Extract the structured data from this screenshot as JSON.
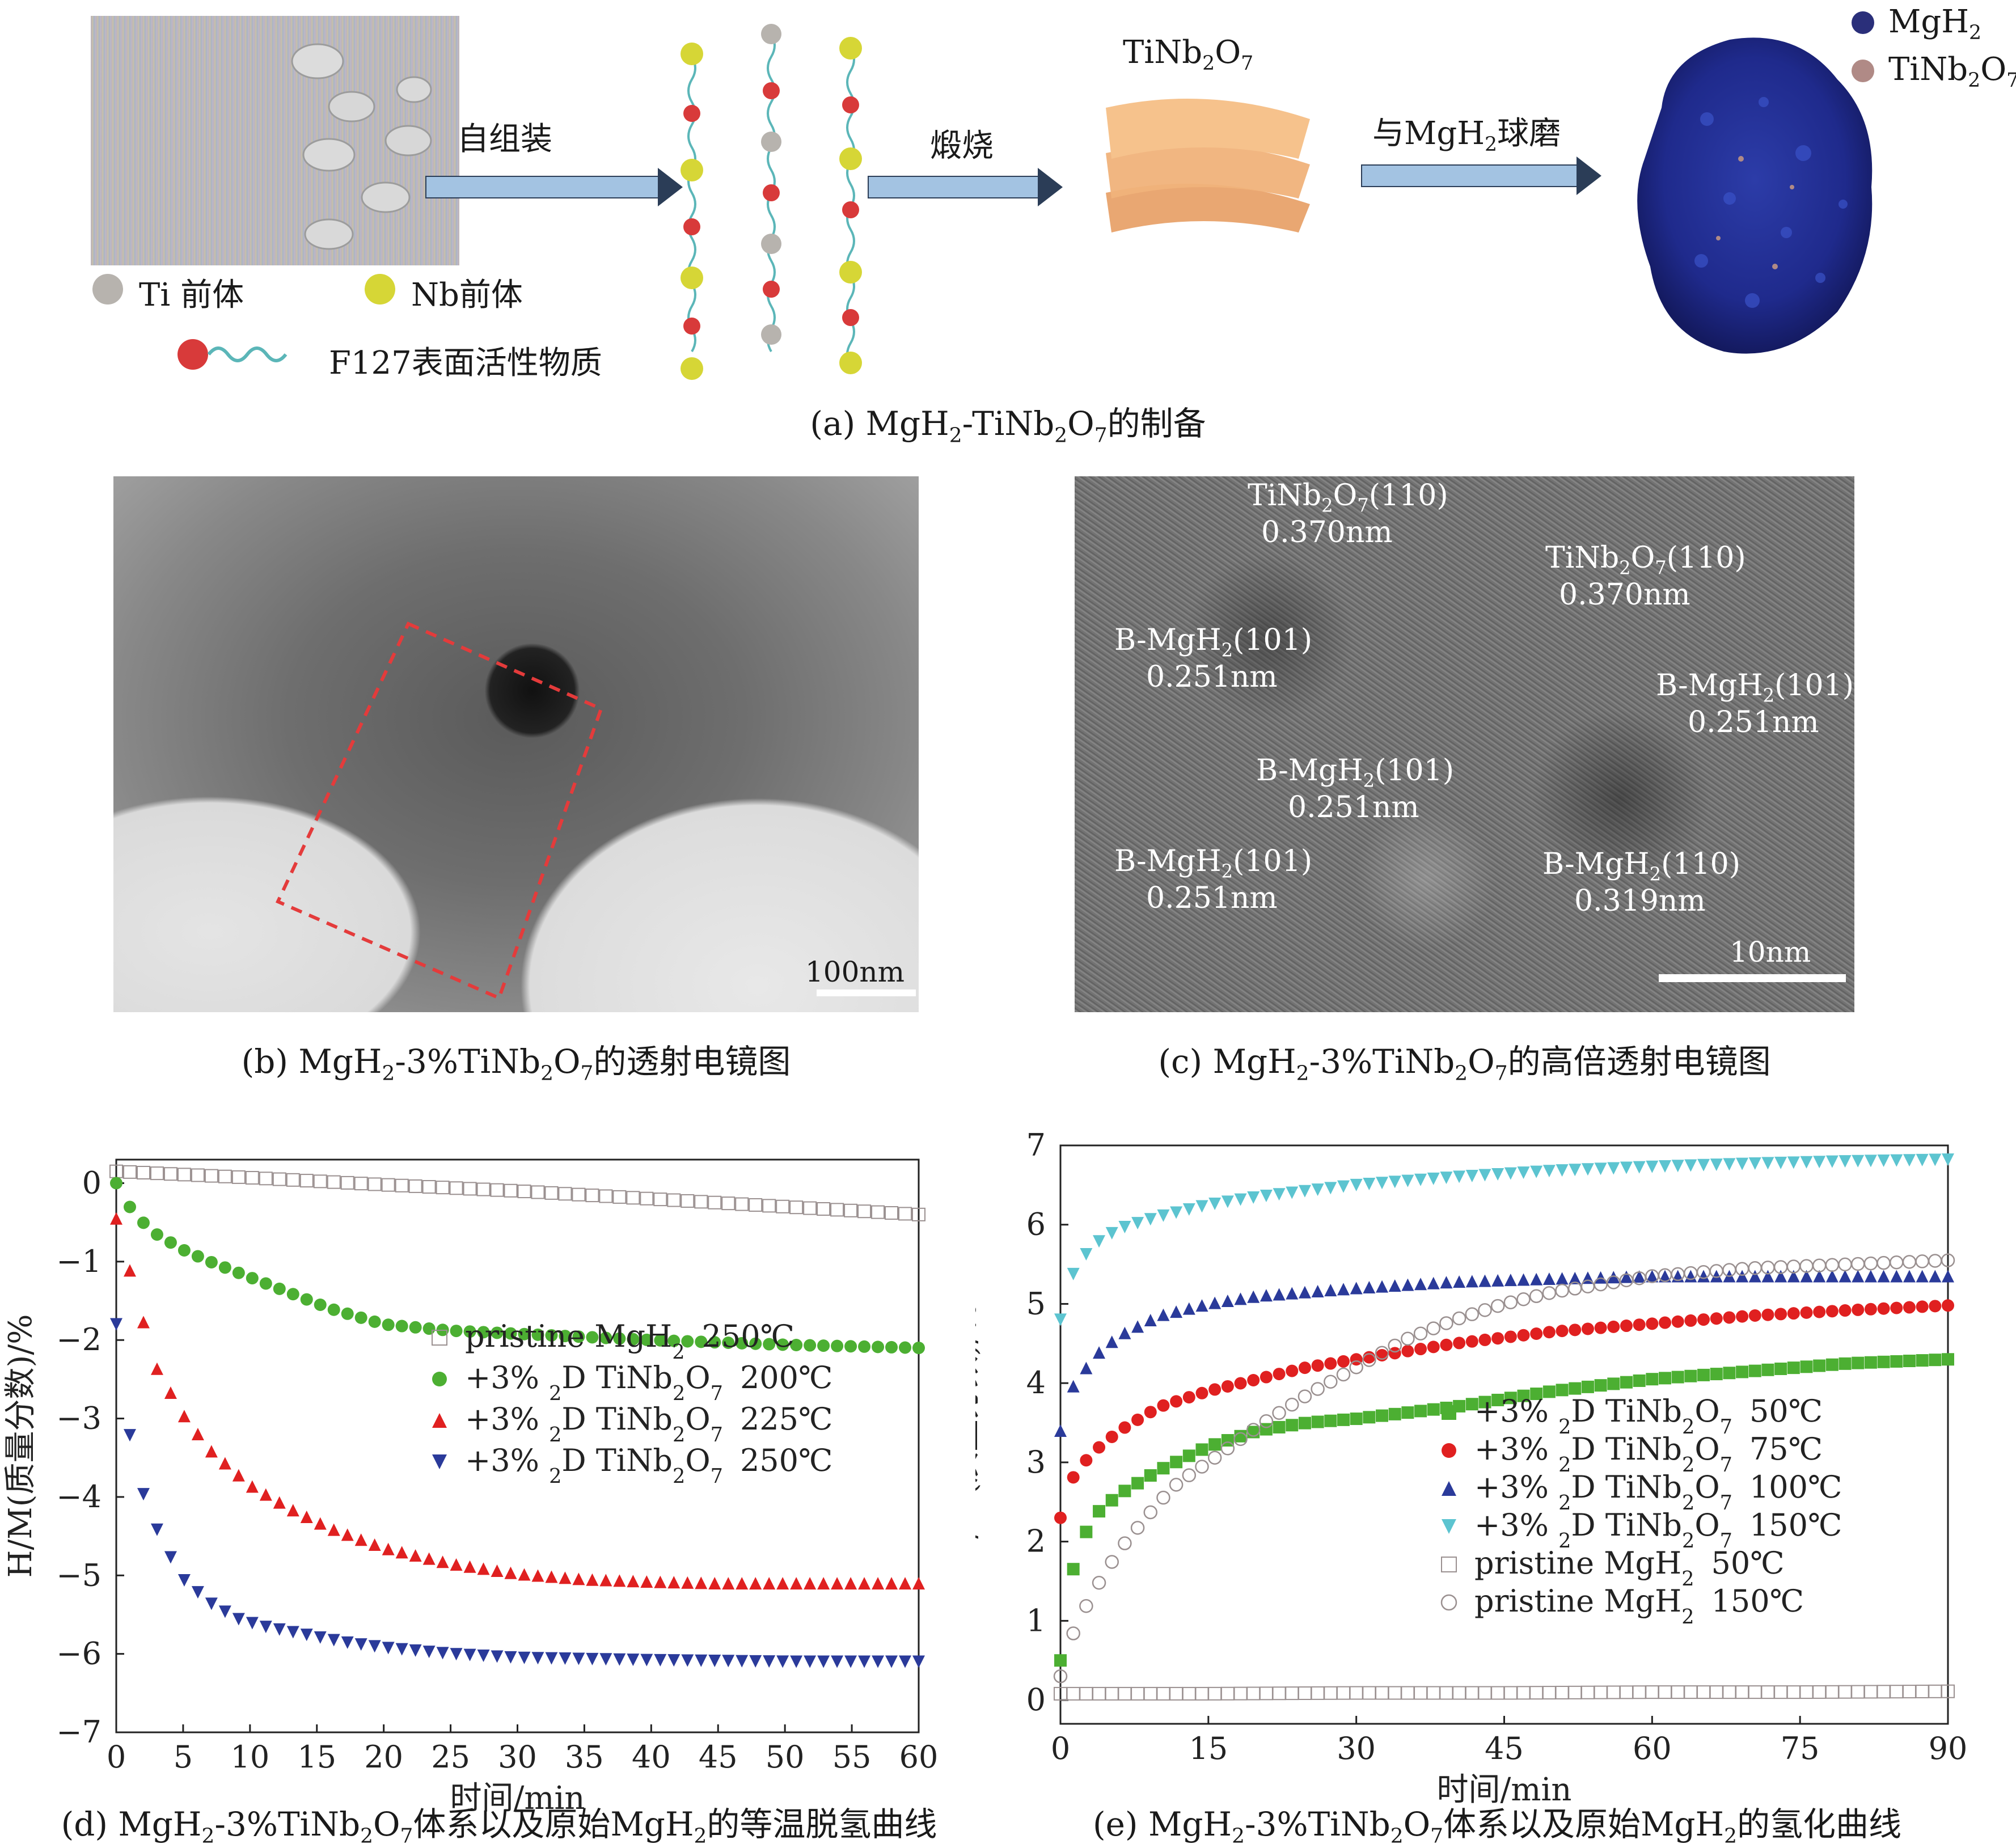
{
  "panel_a": {
    "steps": [
      "自组装",
      "煅烧",
      "与MgH2球磨"
    ],
    "product_label": "TiNb2O7",
    "legend": {
      "ti": "Ti 前体",
      "nb": "Nb前体",
      "f127": "F127表面活性物质"
    },
    "particle_legend": {
      "mgh2": "MgH2",
      "tinb": "TiNb2O7"
    },
    "caption": "(a) MgH2-TiNb2O7的制备",
    "colors": {
      "mgh2": "#2a2f7a",
      "tinb": "#b08a86",
      "nb": "#d6d636",
      "ti": "#b7b3ae",
      "f127": "#d83a3a",
      "arrow": "#9ec1e0"
    }
  },
  "panel_b": {
    "scale_bar": "100nm",
    "caption": "(b) MgH2-3%TiNb2O7的透射电镜图"
  },
  "panel_c": {
    "annotations": [
      {
        "phase": "TiNb2O7(110)",
        "spacing": "0.370nm"
      },
      {
        "phase": "TiNb2O7(110)",
        "spacing": "0.370nm"
      },
      {
        "phase": "B-MgH2(101)",
        "spacing": "0.251nm"
      },
      {
        "phase": "B-MgH2(101)",
        "spacing": "0.251nm"
      },
      {
        "phase": "B-MgH2(101)",
        "spacing": "0.251nm"
      },
      {
        "phase": "B-MgH2(101)",
        "spacing": "0.251nm"
      },
      {
        "phase": "B-MgH2(110)",
        "spacing": "0.319nm"
      }
    ],
    "scale_bar": "10nm",
    "caption": "(c) MgH2-3%TiNb2O7的高倍透射电镜图"
  },
  "chart_data": [
    {
      "id": "d",
      "type": "scatter",
      "title": "(d) MgH2-3%TiNb2O7体系以及原始MgH2的等温脱氢曲线",
      "xlabel": "时间/min",
      "ylabel": "H/M(质量分数)/%",
      "xlim": [
        0,
        60
      ],
      "ylim": [
        -7,
        0.3
      ],
      "xticks": [
        0,
        5,
        10,
        15,
        20,
        25,
        30,
        35,
        40,
        45,
        50,
        55,
        60
      ],
      "yticks": [
        0,
        -1,
        -2,
        -3,
        -4,
        -5,
        -6,
        -7
      ],
      "legend_position": "middle-right",
      "series": [
        {
          "name": "pristine MgH2",
          "temp": "250℃",
          "marker": "square-open",
          "color": "#9a9090",
          "x": [
            0,
            10,
            20,
            30,
            40,
            50,
            60
          ],
          "y": [
            0.15,
            0.07,
            -0.02,
            -0.1,
            -0.2,
            -0.3,
            -0.4
          ]
        },
        {
          "name": "+3% 2D TiNb2O7",
          "temp": "200℃",
          "marker": "circle",
          "color": "#4caf32",
          "x": [
            0,
            0.5,
            1,
            2,
            3,
            5,
            7,
            10,
            13,
            16,
            20,
            25,
            30,
            35,
            40,
            45,
            50,
            55,
            60
          ],
          "y": [
            0,
            -0.15,
            -0.3,
            -0.5,
            -0.65,
            -0.85,
            -1.0,
            -1.2,
            -1.4,
            -1.6,
            -1.8,
            -1.88,
            -1.92,
            -1.96,
            -2.0,
            -2.03,
            -2.06,
            -2.08,
            -2.1
          ]
        },
        {
          "name": "+3% 2D TiNb2O7",
          "temp": "225℃",
          "marker": "triangle-up",
          "color": "#e02020",
          "x": [
            0,
            0.5,
            1,
            1.5,
            2,
            3,
            5,
            7,
            10,
            13,
            16,
            20,
            25,
            30,
            35,
            40,
            45,
            50,
            55,
            60
          ],
          "y": [
            -0.45,
            -0.7,
            -1.1,
            -1.45,
            -1.75,
            -2.35,
            -2.95,
            -3.4,
            -3.85,
            -4.15,
            -4.4,
            -4.65,
            -4.85,
            -4.98,
            -5.05,
            -5.08,
            -5.1,
            -5.1,
            -5.1,
            -5.1
          ]
        },
        {
          "name": "+3% 2D TiNb2O7",
          "temp": "250℃",
          "marker": "triangle-down",
          "color": "#2a3a9a",
          "x": [
            0,
            0.5,
            1,
            1.5,
            2,
            3,
            4,
            5,
            7,
            9,
            11,
            14,
            17,
            20,
            25,
            30,
            40,
            50,
            60
          ],
          "y": [
            -1.8,
            -2.6,
            -3.2,
            -3.6,
            -3.95,
            -4.4,
            -4.75,
            -5.05,
            -5.35,
            -5.55,
            -5.65,
            -5.75,
            -5.85,
            -5.92,
            -6.0,
            -6.05,
            -6.08,
            -6.1,
            -6.1
          ]
        }
      ]
    },
    {
      "id": "e",
      "type": "scatter",
      "title": "(e) MgH2-3%TiNb2O7体系以及原始MgH2的氢化曲线",
      "xlabel": "时间/min",
      "ylabel": "H/M(质量分数)/%",
      "xlim": [
        0,
        90
      ],
      "ylim": [
        -0.3,
        7
      ],
      "xticks": [
        0,
        15,
        30,
        45,
        60,
        75,
        90
      ],
      "yticks": [
        0,
        1,
        2,
        3,
        4,
        5,
        6,
        7
      ],
      "legend_position": "bottom-right",
      "series": [
        {
          "name": "+3% 2D TiNb2O7",
          "temp": "50℃",
          "marker": "square",
          "color": "#4caf32",
          "x": [
            0,
            0.5,
            1,
            2,
            4,
            6,
            8,
            10,
            15,
            20,
            25,
            30,
            40,
            50,
            60,
            70,
            80,
            90
          ],
          "y": [
            0.5,
            1.0,
            1.5,
            2.0,
            2.4,
            2.6,
            2.75,
            2.9,
            3.2,
            3.4,
            3.5,
            3.55,
            3.7,
            3.9,
            4.05,
            4.15,
            4.25,
            4.3
          ]
        },
        {
          "name": "+3% 2D TiNb2O7",
          "temp": "75℃",
          "marker": "circle",
          "color": "#e02020",
          "x": [
            0,
            0.5,
            1,
            2,
            4,
            6,
            10,
            15,
            20,
            25,
            30,
            40,
            50,
            60,
            70,
            80,
            90
          ],
          "y": [
            2.3,
            2.6,
            2.75,
            2.95,
            3.2,
            3.4,
            3.7,
            3.9,
            4.05,
            4.2,
            4.3,
            4.5,
            4.65,
            4.75,
            4.85,
            4.92,
            4.98
          ]
        },
        {
          "name": "+3% 2D TiNb2O7",
          "temp": "100℃",
          "marker": "triangle-up",
          "color": "#2a3a9a",
          "x": [
            0,
            0.5,
            1,
            2,
            4,
            6,
            10,
            15,
            20,
            25,
            30,
            40,
            50,
            60,
            70,
            80,
            90
          ],
          "y": [
            3.4,
            3.7,
            3.9,
            4.1,
            4.4,
            4.6,
            4.85,
            5.0,
            5.1,
            5.15,
            5.2,
            5.28,
            5.32,
            5.35,
            5.35,
            5.35,
            5.35
          ]
        },
        {
          "name": "+3% 2D TiNb2O7",
          "temp": "150℃",
          "marker": "triangle-down",
          "color": "#5cc4d0",
          "x": [
            0,
            0.5,
            1,
            2,
            4,
            6,
            10,
            15,
            20,
            30,
            40,
            50,
            60,
            70,
            80,
            90
          ],
          "y": [
            4.8,
            5.1,
            5.3,
            5.55,
            5.8,
            5.95,
            6.1,
            6.25,
            6.35,
            6.5,
            6.6,
            6.68,
            6.73,
            6.77,
            6.8,
            6.82
          ]
        },
        {
          "name": "pristine MgH2",
          "temp": "50℃",
          "marker": "square-open",
          "color": "#9a9090",
          "x": [
            0,
            15,
            30,
            45,
            60,
            75,
            90
          ],
          "y": [
            0.08,
            0.08,
            0.09,
            0.09,
            0.1,
            0.1,
            0.11
          ]
        },
        {
          "name": "pristine MgH2",
          "temp": "150℃",
          "marker": "circle-open",
          "color": "#9a9090",
          "x": [
            0,
            1,
            2,
            4,
            6,
            8,
            10,
            12,
            15,
            20,
            25,
            30,
            35,
            40,
            45,
            50,
            55,
            60,
            70,
            80,
            90
          ],
          "y": [
            0.3,
            0.75,
            1.05,
            1.5,
            1.9,
            2.2,
            2.5,
            2.75,
            3.0,
            3.45,
            3.85,
            4.2,
            4.55,
            4.8,
            5.0,
            5.15,
            5.25,
            5.35,
            5.45,
            5.5,
            5.55
          ]
        }
      ]
    }
  ]
}
